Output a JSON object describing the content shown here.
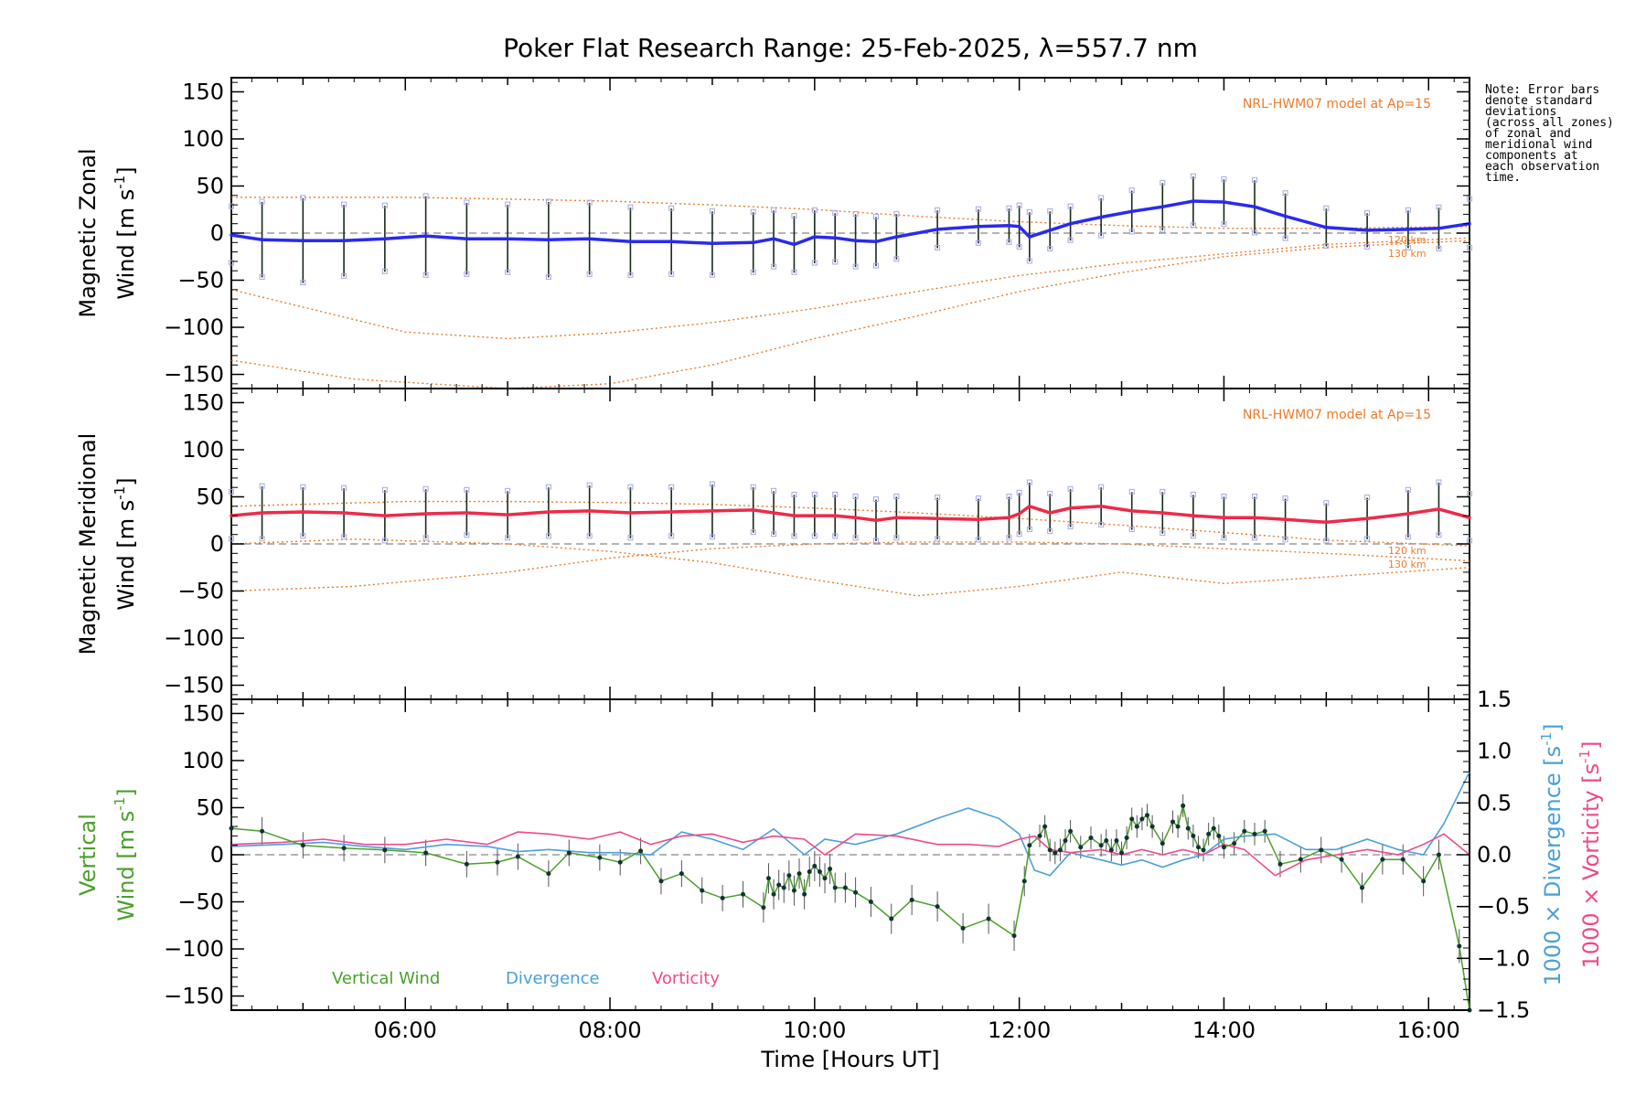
{
  "title": "Poker Flat Research Range: 25-Feb-2025, λ=557.7 nm",
  "note": "Note: Error bars\ndenote standard\ndeviations\n(across all zones)\nof zonal and\nmeridional wind\ncomponents at\neach observation\ntime.",
  "model_label": "NRL-HWM07 model at Ap=15",
  "model_alt_labels": [
    "120 km",
    "130 km"
  ],
  "xlabel": "Time [Hours UT]",
  "x_ticks": [
    "06:00",
    "08:00",
    "10:00",
    "12:00",
    "14:00",
    "16:00"
  ],
  "y_ticks": [
    "150",
    "100",
    "50",
    "0",
    "−50",
    "−100",
    "−150"
  ],
  "right_ticks": [
    "1.5",
    "1.0",
    "0.5",
    "0.0",
    "−0.5",
    "−1.0",
    "−1.5"
  ],
  "panels": {
    "zonal": {
      "ylabel_line1": "Magnetic Zonal",
      "ylabel_line2": "Wind [m s",
      "ylabel_sup": "-1",
      "ylabel_end": "]"
    },
    "meridional": {
      "ylabel_line1": "Magnetic Meridional",
      "ylabel_line2": "Wind [m s",
      "ylabel_sup": "-1",
      "ylabel_end": "]"
    },
    "vertical": {
      "ylabel_line1": "Vertical",
      "ylabel_line2": "Wind [m s",
      "ylabel_sup": "-1",
      "ylabel_end": "]",
      "right_label_div": "1000 × Divergence [s",
      "right_label_vor": "1000 × Vorticity [s",
      "right_sup": "-1",
      "right_end": "]",
      "legend": [
        "Vertical Wind",
        "Divergence",
        "Vorticity"
      ]
    }
  },
  "colors": {
    "zonal": "#2a2aee",
    "meridional": "#ee2a4a",
    "vertical": "#4aa02a",
    "divergence": "#4aa0d8",
    "vorticity": "#ee4a8a",
    "model": "#ee7a2a",
    "scatter": "#a8a8e0"
  },
  "chart_data": [
    {
      "type": "line",
      "name": "zonal",
      "xlim": [
        4.3,
        16.4
      ],
      "ylim": [
        -165,
        165
      ],
      "series": [
        {
          "name": "Magnetic Zonal Wind",
          "x": [
            4.3,
            4.6,
            5.0,
            5.4,
            5.8,
            6.2,
            6.6,
            7.0,
            7.4,
            7.8,
            8.2,
            8.6,
            9.0,
            9.4,
            9.6,
            9.8,
            10.0,
            10.2,
            10.4,
            10.6,
            10.8,
            11.2,
            11.6,
            11.9,
            12.0,
            12.1,
            12.3,
            12.5,
            12.8,
            13.1,
            13.4,
            13.7,
            14.0,
            14.3,
            14.6,
            15.0,
            15.4,
            15.8,
            16.1,
            16.4
          ],
          "y": [
            -2,
            -7,
            -8,
            -8,
            -6,
            -3,
            -6,
            -6,
            -7,
            -6,
            -9,
            -9,
            -11,
            -10,
            -6,
            -12,
            -4,
            -5,
            -8,
            -9,
            -4,
            4,
            7,
            8,
            7,
            -4,
            3,
            10,
            17,
            23,
            28,
            34,
            33,
            28,
            18,
            6,
            3,
            4,
            5,
            10
          ],
          "err": [
            30,
            40,
            45,
            38,
            35,
            42,
            38,
            36,
            40,
            38,
            36,
            35,
            34,
            32,
            30,
            30,
            28,
            26,
            28,
            26,
            24,
            20,
            18,
            18,
            22,
            26,
            20,
            18,
            20,
            22,
            25,
            26,
            24,
            28,
            24,
            20,
            18,
            20,
            22,
            26
          ]
        }
      ],
      "model_curves": [
        {
          "name": "120 km",
          "x": [
            4.3,
            6.0,
            7.0,
            8.0,
            9.0,
            10.0,
            11.0,
            12.0,
            13.0,
            14.0,
            15.0,
            16.4
          ],
          "y": [
            38,
            38,
            36,
            34,
            30,
            25,
            18,
            12,
            8,
            5,
            5,
            7
          ]
        },
        {
          "name": "130 km",
          "x": [
            4.3,
            6.0,
            7.0,
            8.0,
            9.0,
            10.0,
            11.0,
            12.0,
            13.0,
            14.0,
            15.0,
            16.4
          ],
          "y": [
            -60,
            -105,
            -112,
            -106,
            -95,
            -80,
            -62,
            -45,
            -32,
            -22,
            -12,
            -5
          ]
        },
        {
          "name": "130 km lower",
          "x": [
            4.3,
            5.5,
            7.0,
            8.0,
            9.0,
            10.0,
            11.0,
            12.0,
            13.0,
            14.0,
            15.0,
            16.4
          ],
          "y": [
            -135,
            -155,
            -168,
            -160,
            -140,
            -112,
            -88,
            -62,
            -42,
            -25,
            -15,
            -8
          ]
        }
      ]
    },
    {
      "type": "line",
      "name": "meridional",
      "xlim": [
        4.3,
        16.4
      ],
      "ylim": [
        -165,
        165
      ],
      "series": [
        {
          "name": "Magnetic Meridional Wind",
          "x": [
            4.3,
            4.6,
            5.0,
            5.4,
            5.8,
            6.2,
            6.6,
            7.0,
            7.4,
            7.8,
            8.2,
            8.6,
            9.0,
            9.4,
            9.6,
            9.8,
            10.0,
            10.2,
            10.4,
            10.6,
            10.8,
            11.2,
            11.6,
            11.9,
            12.0,
            12.1,
            12.3,
            12.5,
            12.8,
            13.1,
            13.4,
            13.7,
            14.0,
            14.3,
            14.6,
            15.0,
            15.4,
            15.8,
            16.1,
            16.4
          ],
          "y": [
            30,
            33,
            34,
            33,
            30,
            32,
            33,
            31,
            34,
            35,
            33,
            34,
            35,
            36,
            33,
            30,
            30,
            30,
            28,
            25,
            28,
            27,
            26,
            28,
            32,
            40,
            33,
            38,
            40,
            35,
            33,
            30,
            28,
            28,
            26,
            23,
            27,
            32,
            37,
            28
          ],
          "err": [
            25,
            28,
            26,
            26,
            27,
            26,
            24,
            25,
            26,
            27,
            27,
            26,
            28,
            24,
            23,
            22,
            22,
            22,
            22,
            22,
            22,
            22,
            22,
            22,
            22,
            25,
            20,
            20,
            20,
            20,
            22,
            22,
            22,
            22,
            22,
            20,
            22,
            25,
            28,
            25
          ]
        }
      ],
      "model_curves": [
        {
          "name": "120 km",
          "x": [
            4.3,
            6.0,
            7.0,
            8.0,
            9.0,
            10.0,
            11.0,
            12.0,
            13.0,
            14.0,
            15.0,
            16.4
          ],
          "y": [
            40,
            45,
            45,
            44,
            42,
            38,
            33,
            27,
            20,
            12,
            4,
            -2
          ]
        },
        {
          "name": "130 km",
          "x": [
            4.3,
            5.5,
            7.0,
            8.0,
            9.0,
            10.0,
            11.0,
            12.0,
            13.0,
            14.0,
            15.0,
            16.4
          ],
          "y": [
            -50,
            -45,
            -30,
            -15,
            -5,
            0,
            2,
            2,
            0,
            -5,
            -10,
            -18
          ]
        },
        {
          "name": "model 3",
          "x": [
            4.3,
            5.5,
            7.0,
            8.0,
            9.0,
            10.0,
            11.0,
            12.0,
            13.0,
            14.0,
            15.0,
            16.4
          ],
          "y": [
            0,
            5,
            0,
            -8,
            -20,
            -38,
            -55,
            -45,
            -30,
            -42,
            -35,
            -25
          ]
        }
      ]
    },
    {
      "type": "line",
      "name": "vertical",
      "xlim": [
        4.3,
        16.4
      ],
      "ylim": [
        -165,
        165
      ],
      "y2lim": [
        -1.5,
        1.5
      ],
      "series": [
        {
          "name": "Vertical Wind",
          "x": [
            4.3,
            4.6,
            5.0,
            5.4,
            5.8,
            6.2,
            6.6,
            6.9,
            7.1,
            7.4,
            7.6,
            7.9,
            8.1,
            8.3,
            8.5,
            8.7,
            8.9,
            9.1,
            9.3,
            9.5,
            9.55,
            9.6,
            9.65,
            9.7,
            9.75,
            9.8,
            9.85,
            9.9,
            9.95,
            10.0,
            10.05,
            10.1,
            10.15,
            10.2,
            10.3,
            10.4,
            10.55,
            10.75,
            10.95,
            11.2,
            11.45,
            11.7,
            11.95,
            12.05,
            12.1,
            12.2,
            12.25,
            12.3,
            12.35,
            12.4,
            12.45,
            12.5,
            12.6,
            12.7,
            12.8,
            12.85,
            12.9,
            12.95,
            13.0,
            13.05,
            13.1,
            13.15,
            13.2,
            13.25,
            13.3,
            13.4,
            13.5,
            13.55,
            13.6,
            13.65,
            13.7,
            13.75,
            13.8,
            13.85,
            13.9,
            13.95,
            14.0,
            14.1,
            14.2,
            14.3,
            14.4,
            14.55,
            14.75,
            14.95,
            15.15,
            15.35,
            15.55,
            15.75,
            15.95,
            16.1,
            16.3,
            16.4
          ],
          "y": [
            28,
            25,
            10,
            7,
            5,
            2,
            -10,
            -8,
            -2,
            -20,
            2,
            -3,
            -8,
            4,
            -28,
            -20,
            -38,
            -46,
            -42,
            -56,
            -25,
            -42,
            -32,
            -35,
            -22,
            -38,
            -20,
            -42,
            -18,
            -12,
            -18,
            -25,
            -15,
            -35,
            -35,
            -40,
            -50,
            -68,
            -48,
            -55,
            -78,
            -68,
            -86,
            -28,
            10,
            20,
            30,
            5,
            2,
            5,
            15,
            25,
            8,
            18,
            10,
            15,
            5,
            15,
            2,
            18,
            38,
            30,
            38,
            42,
            30,
            12,
            35,
            30,
            52,
            28,
            20,
            8,
            5,
            22,
            28,
            20,
            8,
            12,
            25,
            22,
            25,
            -10,
            -5,
            5,
            -5,
            -35,
            -5,
            -5,
            -28,
            0,
            -97,
            -170
          ],
          "err": [
            15,
            15,
            14,
            14,
            14,
            14,
            14,
            14,
            14,
            14,
            14,
            14,
            14,
            14,
            14,
            14,
            14,
            14,
            14,
            16,
            16,
            16,
            16,
            16,
            16,
            16,
            16,
            16,
            16,
            16,
            16,
            16,
            16,
            16,
            16,
            16,
            16,
            16,
            16,
            16,
            16,
            16,
            16,
            16,
            12,
            12,
            12,
            12,
            12,
            12,
            12,
            12,
            12,
            12,
            12,
            12,
            12,
            12,
            12,
            12,
            12,
            12,
            12,
            12,
            12,
            12,
            12,
            12,
            12,
            12,
            12,
            12,
            12,
            12,
            12,
            12,
            12,
            12,
            12,
            12,
            12,
            14,
            14,
            14,
            14,
            16,
            16,
            16,
            16,
            16,
            18,
            18
          ]
        }
      ],
      "series2": [
        {
          "name": "Divergence",
          "axis": "right",
          "x": [
            4.3,
            4.8,
            5.2,
            5.6,
            6.0,
            6.4,
            6.8,
            7.1,
            7.4,
            7.8,
            8.1,
            8.4,
            8.7,
            9.0,
            9.3,
            9.6,
            9.9,
            10.1,
            10.4,
            10.8,
            11.2,
            11.5,
            11.8,
            12.0,
            12.15,
            12.3,
            12.5,
            12.8,
            13.0,
            13.2,
            13.4,
            13.6,
            13.8,
            14.0,
            14.2,
            14.5,
            14.8,
            15.1,
            15.4,
            15.7,
            15.95,
            16.15,
            16.4
          ],
          "y": [
            0.08,
            0.1,
            0.12,
            0.08,
            0.05,
            0.1,
            0.08,
            0.03,
            0.05,
            0.02,
            0.02,
            0.0,
            0.22,
            0.15,
            0.05,
            0.25,
            0.0,
            0.15,
            0.1,
            0.2,
            0.35,
            0.45,
            0.35,
            0.2,
            -0.15,
            -0.2,
            0.02,
            -0.05,
            -0.1,
            -0.05,
            -0.12,
            -0.05,
            0.0,
            0.15,
            0.18,
            0.2,
            0.05,
            0.05,
            0.15,
            0.05,
            0.0,
            0.3,
            0.8
          ]
        },
        {
          "name": "Vorticity",
          "axis": "right",
          "x": [
            4.3,
            4.8,
            5.2,
            5.6,
            6.0,
            6.4,
            6.8,
            7.1,
            7.4,
            7.8,
            8.1,
            8.4,
            8.7,
            9.0,
            9.3,
            9.6,
            9.9,
            10.1,
            10.4,
            10.8,
            11.2,
            11.5,
            11.8,
            12.0,
            12.15,
            12.3,
            12.5,
            12.8,
            13.0,
            13.2,
            13.4,
            13.6,
            13.8,
            14.0,
            14.2,
            14.5,
            14.8,
            15.1,
            15.4,
            15.7,
            15.95,
            16.15,
            16.4
          ],
          "y": [
            0.1,
            0.12,
            0.15,
            0.1,
            0.1,
            0.15,
            0.1,
            0.22,
            0.2,
            0.15,
            0.22,
            0.1,
            0.18,
            0.2,
            0.12,
            0.18,
            0.15,
            0.0,
            0.2,
            0.18,
            0.1,
            0.1,
            0.08,
            0.15,
            0.18,
            0.05,
            0.02,
            0.05,
            0.0,
            0.05,
            0.0,
            0.05,
            0.0,
            0.1,
            0.05,
            -0.2,
            -0.05,
            0.0,
            0.05,
            0.0,
            0.1,
            0.2,
            0.0
          ]
        }
      ]
    }
  ]
}
